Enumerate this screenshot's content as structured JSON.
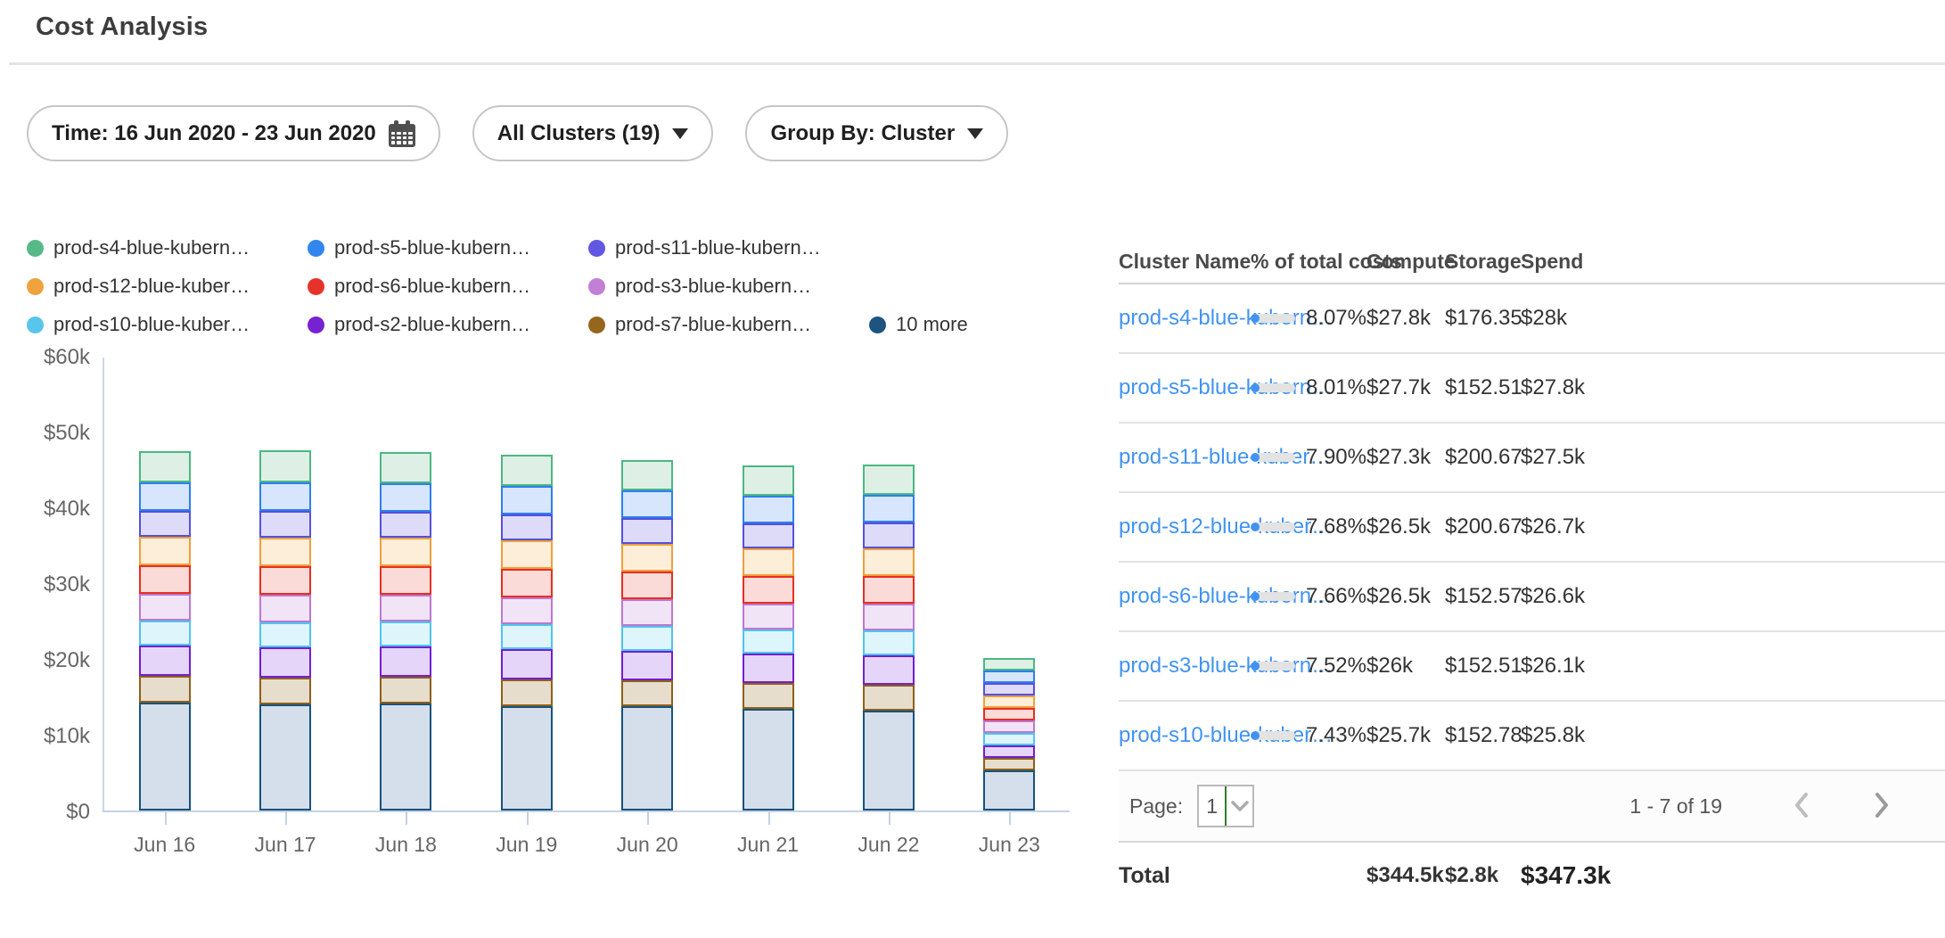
{
  "header": {
    "title": "Cost Analysis"
  },
  "filters": {
    "time": {
      "label": "Time: 16 Jun 2020 - 23 Jun 2020",
      "icon": "calendar-icon"
    },
    "clusters": {
      "label": "All Clusters (19)",
      "icon": "caret-down-icon"
    },
    "group_by": {
      "label": "Group By: Cluster",
      "icon": "caret-down-icon"
    }
  },
  "chart_data": {
    "type": "bar",
    "stacked": true,
    "title": "",
    "x": [
      "Jun 16",
      "Jun 17",
      "Jun 18",
      "Jun 19",
      "Jun 20",
      "Jun 21",
      "Jun 22",
      "Jun 23"
    ],
    "xlabel": "",
    "ylabel": "",
    "ylim": [
      0,
      60
    ],
    "y_unit": "thousand USD",
    "ytick_labels": [
      "$0",
      "$10k",
      "$20k",
      "$30k",
      "$40k",
      "$50k",
      "$60k"
    ],
    "grid": false,
    "legend_position": "top",
    "stack_note": "first series renders at top of stack; last series ('10 more') at bottom",
    "series": [
      {
        "name": "prod-s4-blue-kubern…",
        "color": "#57b888",
        "stroke": "#4cb782",
        "fill": "#def0e5",
        "values": [
          4.1,
          4.2,
          4.1,
          4.1,
          4.0,
          4.0,
          4.0,
          1.6
        ]
      },
      {
        "name": "prod-s5-blue-kubern…",
        "color": "#3186f0",
        "stroke": "#2d7ff0",
        "fill": "#d7e6fc",
        "values": [
          3.8,
          3.8,
          3.8,
          3.8,
          3.7,
          3.7,
          3.7,
          1.6
        ]
      },
      {
        "name": "prod-s11-blue-kubern…",
        "color": "#6257e2",
        "stroke": "#5550e0",
        "fill": "#dedbf9",
        "values": [
          3.4,
          3.5,
          3.4,
          3.4,
          3.4,
          3.3,
          3.4,
          1.6
        ]
      },
      {
        "name": "prod-s12-blue-kuber…",
        "color": "#f0a23f",
        "stroke": "#efa03a",
        "fill": "#fdeeda",
        "values": [
          3.8,
          3.8,
          3.8,
          3.8,
          3.7,
          3.7,
          3.7,
          1.6
        ]
      },
      {
        "name": "prod-s6-blue-kubern…",
        "color": "#e5332a",
        "stroke": "#e82e22",
        "fill": "#fbdbd8",
        "values": [
          3.8,
          3.8,
          3.8,
          3.8,
          3.7,
          3.7,
          3.7,
          1.6
        ]
      },
      {
        "name": "prod-s3-blue-kubern…",
        "color": "#c17fd5",
        "stroke": "#bc77d2",
        "fill": "#f2e4f7",
        "values": [
          3.5,
          3.6,
          3.5,
          3.5,
          3.5,
          3.4,
          3.5,
          1.6
        ]
      },
      {
        "name": "prod-s10-blue-kuber…",
        "color": "#58c5ea",
        "stroke": "#4fc4ec",
        "fill": "#def5fc",
        "values": [
          3.3,
          3.3,
          3.3,
          3.3,
          3.3,
          3.2,
          3.3,
          1.6
        ]
      },
      {
        "name": "prod-s2-blue-kubern…",
        "color": "#7722d2",
        "stroke": "#711fd0",
        "fill": "#e5d5f9",
        "values": [
          4.0,
          4.0,
          4.0,
          4.0,
          3.9,
          3.9,
          3.9,
          1.6
        ]
      },
      {
        "name": "prod-s7-blue-kubern…",
        "color": "#95661c",
        "stroke": "#8f6018",
        "fill": "#e6ddcd",
        "values": [
          3.5,
          3.5,
          3.5,
          3.5,
          3.4,
          3.4,
          3.4,
          1.6
        ]
      },
      {
        "name": "10 more",
        "color": "#1d5480",
        "stroke": "#17527e",
        "fill": "#d4dfeb",
        "values": [
          14.2,
          14.0,
          14.1,
          13.8,
          13.8,
          13.4,
          13.2,
          5.3
        ]
      }
    ],
    "legend_rows": [
      [
        0,
        1,
        2
      ],
      [
        3,
        4,
        5
      ],
      [
        6,
        7,
        8,
        9
      ]
    ]
  },
  "table": {
    "columns": [
      "Cluster Name",
      "% of total costs",
      "Compute",
      "Storage",
      "Spend"
    ],
    "rows": [
      {
        "name": "prod-s4-blue-kubern…",
        "pct": "8.07%",
        "pct_value": 8.07,
        "compute": "$27.8k",
        "storage": "$176.35",
        "spend": "$28k"
      },
      {
        "name": "prod-s5-blue-kubern…",
        "pct": "8.01%",
        "pct_value": 8.01,
        "compute": "$27.7k",
        "storage": "$152.51",
        "spend": "$27.8k"
      },
      {
        "name": "prod-s11-blue-kuber…",
        "pct": "7.90%",
        "pct_value": 7.9,
        "compute": "$27.3k",
        "storage": "$200.67",
        "spend": "$27.5k"
      },
      {
        "name": "prod-s12-blue-kuber…",
        "pct": "7.68%",
        "pct_value": 7.68,
        "compute": "$26.5k",
        "storage": "$200.67",
        "spend": "$26.7k"
      },
      {
        "name": "prod-s6-blue-kubern…",
        "pct": "7.66%",
        "pct_value": 7.66,
        "compute": "$26.5k",
        "storage": "$152.57",
        "spend": "$26.6k"
      },
      {
        "name": "prod-s3-blue-kubern…",
        "pct": "7.52%",
        "pct_value": 7.52,
        "compute": "$26k",
        "storage": "$152.51",
        "spend": "$26.1k"
      },
      {
        "name": "prod-s10-blue-kuber…",
        "pct": "7.43%",
        "pct_value": 7.43,
        "compute": "$25.7k",
        "storage": "$152.78",
        "spend": "$25.8k"
      }
    ],
    "pagination": {
      "page_label": "Page:",
      "page": "1",
      "range": "1 - 7 of 19"
    },
    "total": {
      "label": "Total",
      "compute": "$344.5k",
      "storage": "$2.8k",
      "spend": "$347.3k"
    }
  },
  "colors": {
    "link": "#4193f0",
    "progress_track": "#e3e3e3",
    "progress_fill": "#4193f0",
    "axis": "#c5d1e3",
    "page_select_divider": "#2e7d27"
  }
}
